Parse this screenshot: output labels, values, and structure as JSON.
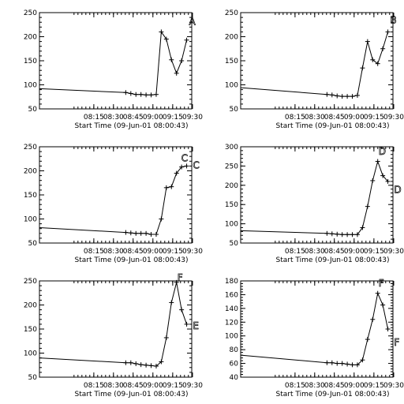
{
  "chart_data": [
    {
      "type": "line",
      "xlabel": "Start Time (09-Jun-01 08:00:43)",
      "x_ticks": [
        "08:15",
        "08:30",
        "08:45",
        "09:00",
        "09:15",
        "09:30"
      ],
      "ylim": [
        50,
        250
      ],
      "y_ticks": [
        50,
        100,
        150,
        200,
        250
      ],
      "annotations": [
        {
          "text": "A",
          "x": 38.5,
          "y": 225
        }
      ],
      "series": [
        {
          "x": [
            0,
            34,
            36,
            38,
            40,
            42,
            44,
            46,
            48,
            50,
            52,
            54,
            56,
            58
          ],
          "y": [
            92,
            84,
            82,
            80,
            80,
            79,
            79,
            80,
            210,
            195,
            152,
            124,
            150,
            193
          ]
        }
      ]
    },
    {
      "type": "line",
      "xlabel": "Start Time (09-Jun-01 08:00:43)",
      "x_ticks": [
        "08:15",
        "08:30",
        "08:45",
        "09:00",
        "09:15",
        "09:30"
      ],
      "ylim": [
        50,
        250
      ],
      "y_ticks": [
        50,
        100,
        150,
        200,
        250
      ],
      "annotations": [
        {
          "text": "B",
          "x": 38.5,
          "y": 228
        }
      ],
      "series": [
        {
          "x": [
            0,
            34,
            36,
            38,
            40,
            42,
            44,
            46,
            48,
            50,
            52,
            54,
            56,
            58
          ],
          "y": [
            94,
            80,
            79,
            77,
            76,
            76,
            76,
            78,
            135,
            190,
            152,
            144,
            175,
            210
          ]
        }
      ]
    },
    {
      "type": "line",
      "xlabel": "Start Time (09-Jun-01 08:00:43)",
      "x_ticks": [
        "08:15",
        "08:30",
        "08:45",
        "09:00",
        "09:15",
        "09:30"
      ],
      "ylim": [
        50,
        250
      ],
      "y_ticks": [
        50,
        100,
        150,
        200,
        250
      ],
      "annotations": [
        {
          "text": "C",
          "x": 36.5,
          "y": 220
        },
        {
          "text": "C",
          "x": 39.5,
          "y": 205
        }
      ],
      "series": [
        {
          "x": [
            0,
            34,
            36,
            38,
            40,
            42,
            44,
            46,
            48,
            50,
            52,
            54,
            56,
            58
          ],
          "y": [
            82,
            72,
            71,
            70,
            70,
            70,
            68,
            68,
            100,
            165,
            167,
            195,
            208,
            210
          ]
        }
      ]
    },
    {
      "type": "line",
      "xlabel": "Start Time (09-Jun-01 08:00:43)",
      "x_ticks": [
        "08:15",
        "08:30",
        "08:45",
        "09:00",
        "09:15",
        "09:30"
      ],
      "ylim": [
        50,
        300
      ],
      "y_ticks": [
        50,
        100,
        150,
        200,
        250,
        300
      ],
      "annotations": [
        {
          "text": "D",
          "x": 35.5,
          "y": 280
        },
        {
          "text": "D",
          "x": 39.5,
          "y": 180
        }
      ],
      "series": [
        {
          "x": [
            0,
            34,
            36,
            38,
            40,
            42,
            44,
            46,
            48,
            50,
            52,
            54,
            56,
            58
          ],
          "y": [
            82,
            75,
            74,
            73,
            72,
            72,
            72,
            72,
            90,
            145,
            212,
            262,
            225,
            210
          ]
        }
      ]
    },
    {
      "type": "line",
      "xlabel": "Start Time (09-Jun-01 08:00:43)",
      "x_ticks": [
        "08:15",
        "08:30",
        "08:45",
        "09:00",
        "09:15",
        "09:30"
      ],
      "ylim": [
        50,
        250
      ],
      "y_ticks": [
        50,
        100,
        150,
        200,
        250
      ],
      "annotations": [
        {
          "text": "F",
          "x": 35.5,
          "y": 250
        },
        {
          "text": "E",
          "x": 39.5,
          "y": 150
        }
      ],
      "series": [
        {
          "x": [
            0,
            34,
            36,
            38,
            40,
            42,
            44,
            46,
            48,
            50,
            52,
            54,
            56,
            58
          ],
          "y": [
            90,
            80,
            80,
            78,
            76,
            75,
            74,
            73,
            82,
            132,
            205,
            247,
            190,
            160
          ]
        }
      ]
    },
    {
      "type": "line",
      "xlabel": "Start Time (09-Jun-01 08:00:43)",
      "x_ticks": [
        "08:15",
        "08:30",
        "08:45",
        "09:00",
        "09:15",
        "09:30"
      ],
      "ylim": [
        40,
        180
      ],
      "y_ticks": [
        40,
        60,
        80,
        100,
        120,
        140,
        160,
        180
      ],
      "annotations": [
        {
          "text": "F",
          "x": 35.5,
          "y": 172
        },
        {
          "text": "F",
          "x": 39.5,
          "y": 86
        }
      ],
      "series": [
        {
          "x": [
            0,
            34,
            36,
            38,
            40,
            42,
            44,
            46,
            48,
            50,
            52,
            54,
            56,
            58
          ],
          "y": [
            72,
            61,
            61,
            60,
            60,
            59,
            58,
            58,
            65,
            95,
            124,
            162,
            145,
            110
          ]
        }
      ]
    }
  ]
}
